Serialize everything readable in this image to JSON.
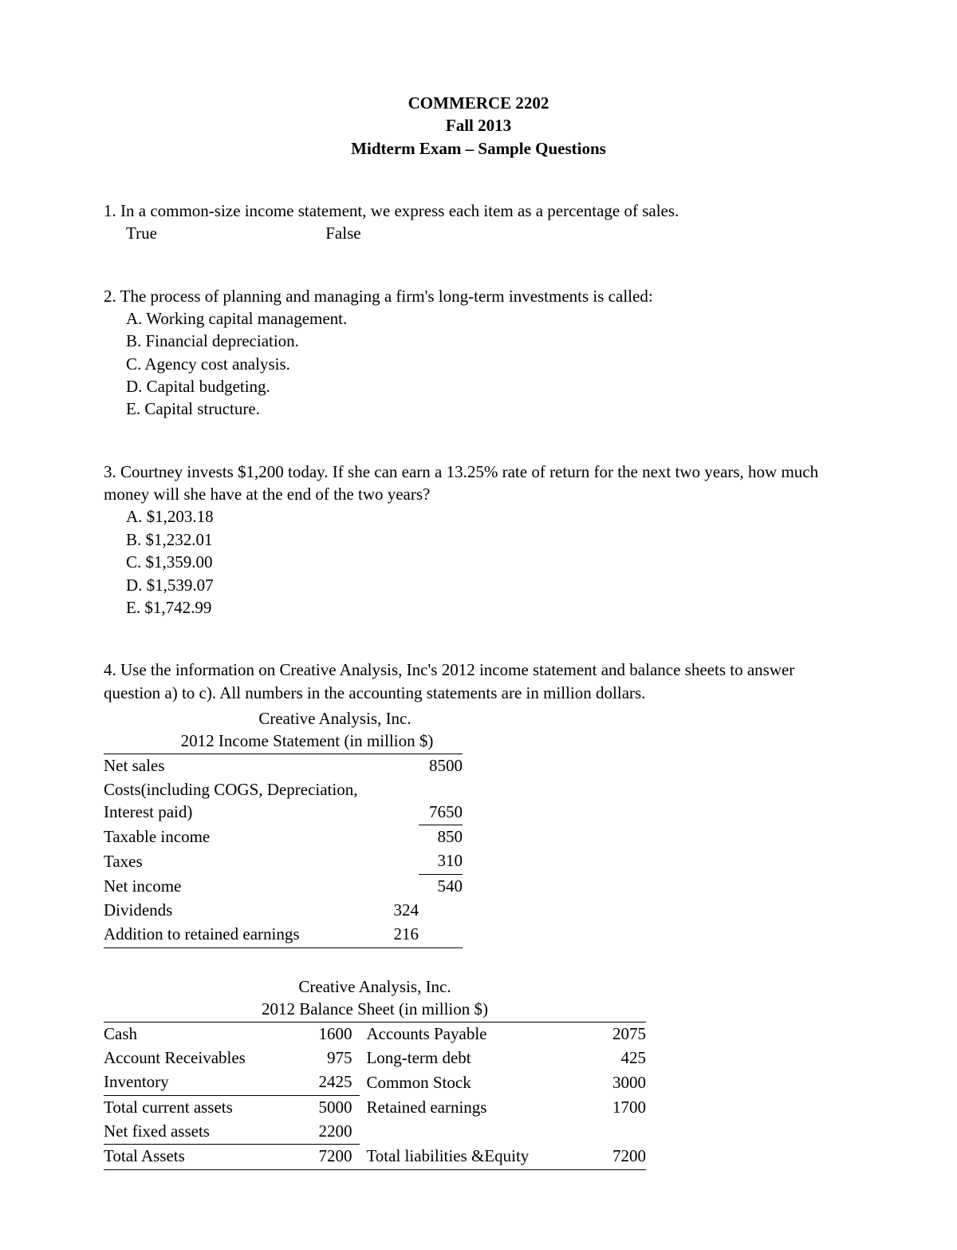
{
  "header": {
    "line1": "COMMERCE 2202",
    "line2": "Fall 2013",
    "line3": "Midterm Exam – Sample Questions"
  },
  "q1": {
    "text": "1. In a common-size income statement, we express each item as a percentage of sales.",
    "true_label": "True",
    "false_label": "False"
  },
  "q2": {
    "text": "2. The process of planning and managing a firm's long-term investments is called:",
    "A": "A. Working capital management.",
    "B": "B. Financial depreciation.",
    "C": "C. Agency cost analysis.",
    "D": "D. Capital budgeting.",
    "E": "E. Capital structure."
  },
  "q3": {
    "text": "3.  Courtney invests $1,200 today. If she can earn a 13.25% rate of return for the next two years, how much money will she have at the end of the two years?",
    "A": "A. $1,203.18",
    "B": "B. $1,232.01",
    "C": "C. $1,359.00",
    "D": "D. $1,539.07",
    "E": "E. $1,742.99"
  },
  "q4": {
    "text": "4. Use the information on Creative Analysis, Inc's 2012 income statement and balance sheets to answer question a) to c). All numbers in the accounting statements are in million dollars."
  },
  "income": {
    "caption": "Creative Analysis, Inc.",
    "subcaption": "2012 Income Statement (in million $)",
    "rows": {
      "net_sales": {
        "label": "Net sales",
        "v2": "8500"
      },
      "costs": {
        "label": "Costs(including COGS, Depreciation, Interest paid)",
        "v2": "7650"
      },
      "taxable": {
        "label": "Taxable income",
        "v2": "850"
      },
      "taxes": {
        "label": "Taxes",
        "v2": "310"
      },
      "net_income": {
        "label": "Net income",
        "v2": "540"
      },
      "dividends": {
        "label": "Dividends",
        "v1": "324"
      },
      "add_re": {
        "label": "Addition to retained earnings",
        "v1": "216"
      }
    }
  },
  "bs": {
    "caption": "Creative Analysis, Inc.",
    "subcaption": "2012 Balance Sheet (in million $)",
    "rows": {
      "r1": {
        "ll": "Cash",
        "lv": "1600",
        "rl": "Accounts Payable",
        "rv": "2075"
      },
      "r2": {
        "ll": "Account Receivables",
        "lv": "975",
        "rl": "Long-term debt",
        "rv": "425"
      },
      "r3": {
        "ll": "Inventory",
        "lv": "2425",
        "rl": "Common Stock",
        "rv": "3000"
      },
      "r4": {
        "ll": "Total current assets",
        "lv": "5000",
        "rl": "Retained earnings",
        "rv": "1700"
      },
      "r5": {
        "ll": "Net fixed assets",
        "lv": "2200",
        "rl": "",
        "rv": ""
      },
      "r6": {
        "ll": "Total Assets",
        "lv": "7200",
        "rl": "Total liabilities &Equity",
        "rv": "7200"
      }
    }
  }
}
